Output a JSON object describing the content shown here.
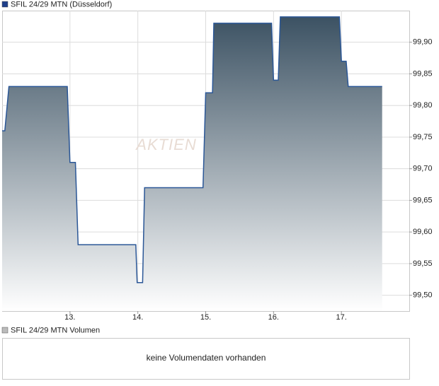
{
  "chart_data": {
    "type": "area",
    "title": "SFIL 24/29 MTN (Düsseldorf)",
    "watermark": "AKTIEN",
    "x": [
      12.0,
      12.04,
      12.1,
      12.96,
      13.0,
      13.08,
      13.12,
      13.97,
      13.99,
      14.07,
      14.1,
      14.96,
      15.0,
      15.1,
      15.12,
      15.97,
      16.0,
      16.07,
      16.1,
      16.97,
      17.0,
      17.07,
      17.1,
      17.6
    ],
    "series": [
      {
        "name": "SFIL 24/29 MTN (Düsseldorf)",
        "color": "#2b5797",
        "values": [
          99.76,
          99.76,
          99.83,
          99.83,
          99.71,
          99.71,
          99.58,
          99.58,
          99.52,
          99.52,
          99.67,
          99.67,
          99.82,
          99.82,
          99.93,
          99.93,
          99.84,
          99.84,
          99.94,
          99.94,
          99.87,
          99.87,
          99.83,
          99.83
        ]
      }
    ],
    "xlim": [
      12,
      18
    ],
    "xticks": [
      {
        "value": 13,
        "label": "13."
      },
      {
        "value": 14,
        "label": "14."
      },
      {
        "value": 15,
        "label": "15."
      },
      {
        "value": 16,
        "label": "16."
      },
      {
        "value": 17,
        "label": "17."
      }
    ],
    "ylim": [
      99.475,
      99.95
    ],
    "yticks": [
      {
        "value": 99.5,
        "label": "99,50"
      },
      {
        "value": 99.55,
        "label": "99,55"
      },
      {
        "value": 99.6,
        "label": "99,60"
      },
      {
        "value": 99.65,
        "label": "99,65"
      },
      {
        "value": 99.7,
        "label": "99,70"
      },
      {
        "value": 99.75,
        "label": "99,75"
      },
      {
        "value": 99.8,
        "label": "99,80"
      },
      {
        "value": 99.85,
        "label": "99,85"
      },
      {
        "value": 99.9,
        "label": "99,90"
      }
    ],
    "grid": true,
    "fill_top": "#3c5263",
    "fill_bottom": "#ffffff"
  },
  "volume_panel": {
    "legend": "SFIL 24/29 MTN Volumen",
    "message": "keine Volumendaten vorhanden"
  }
}
